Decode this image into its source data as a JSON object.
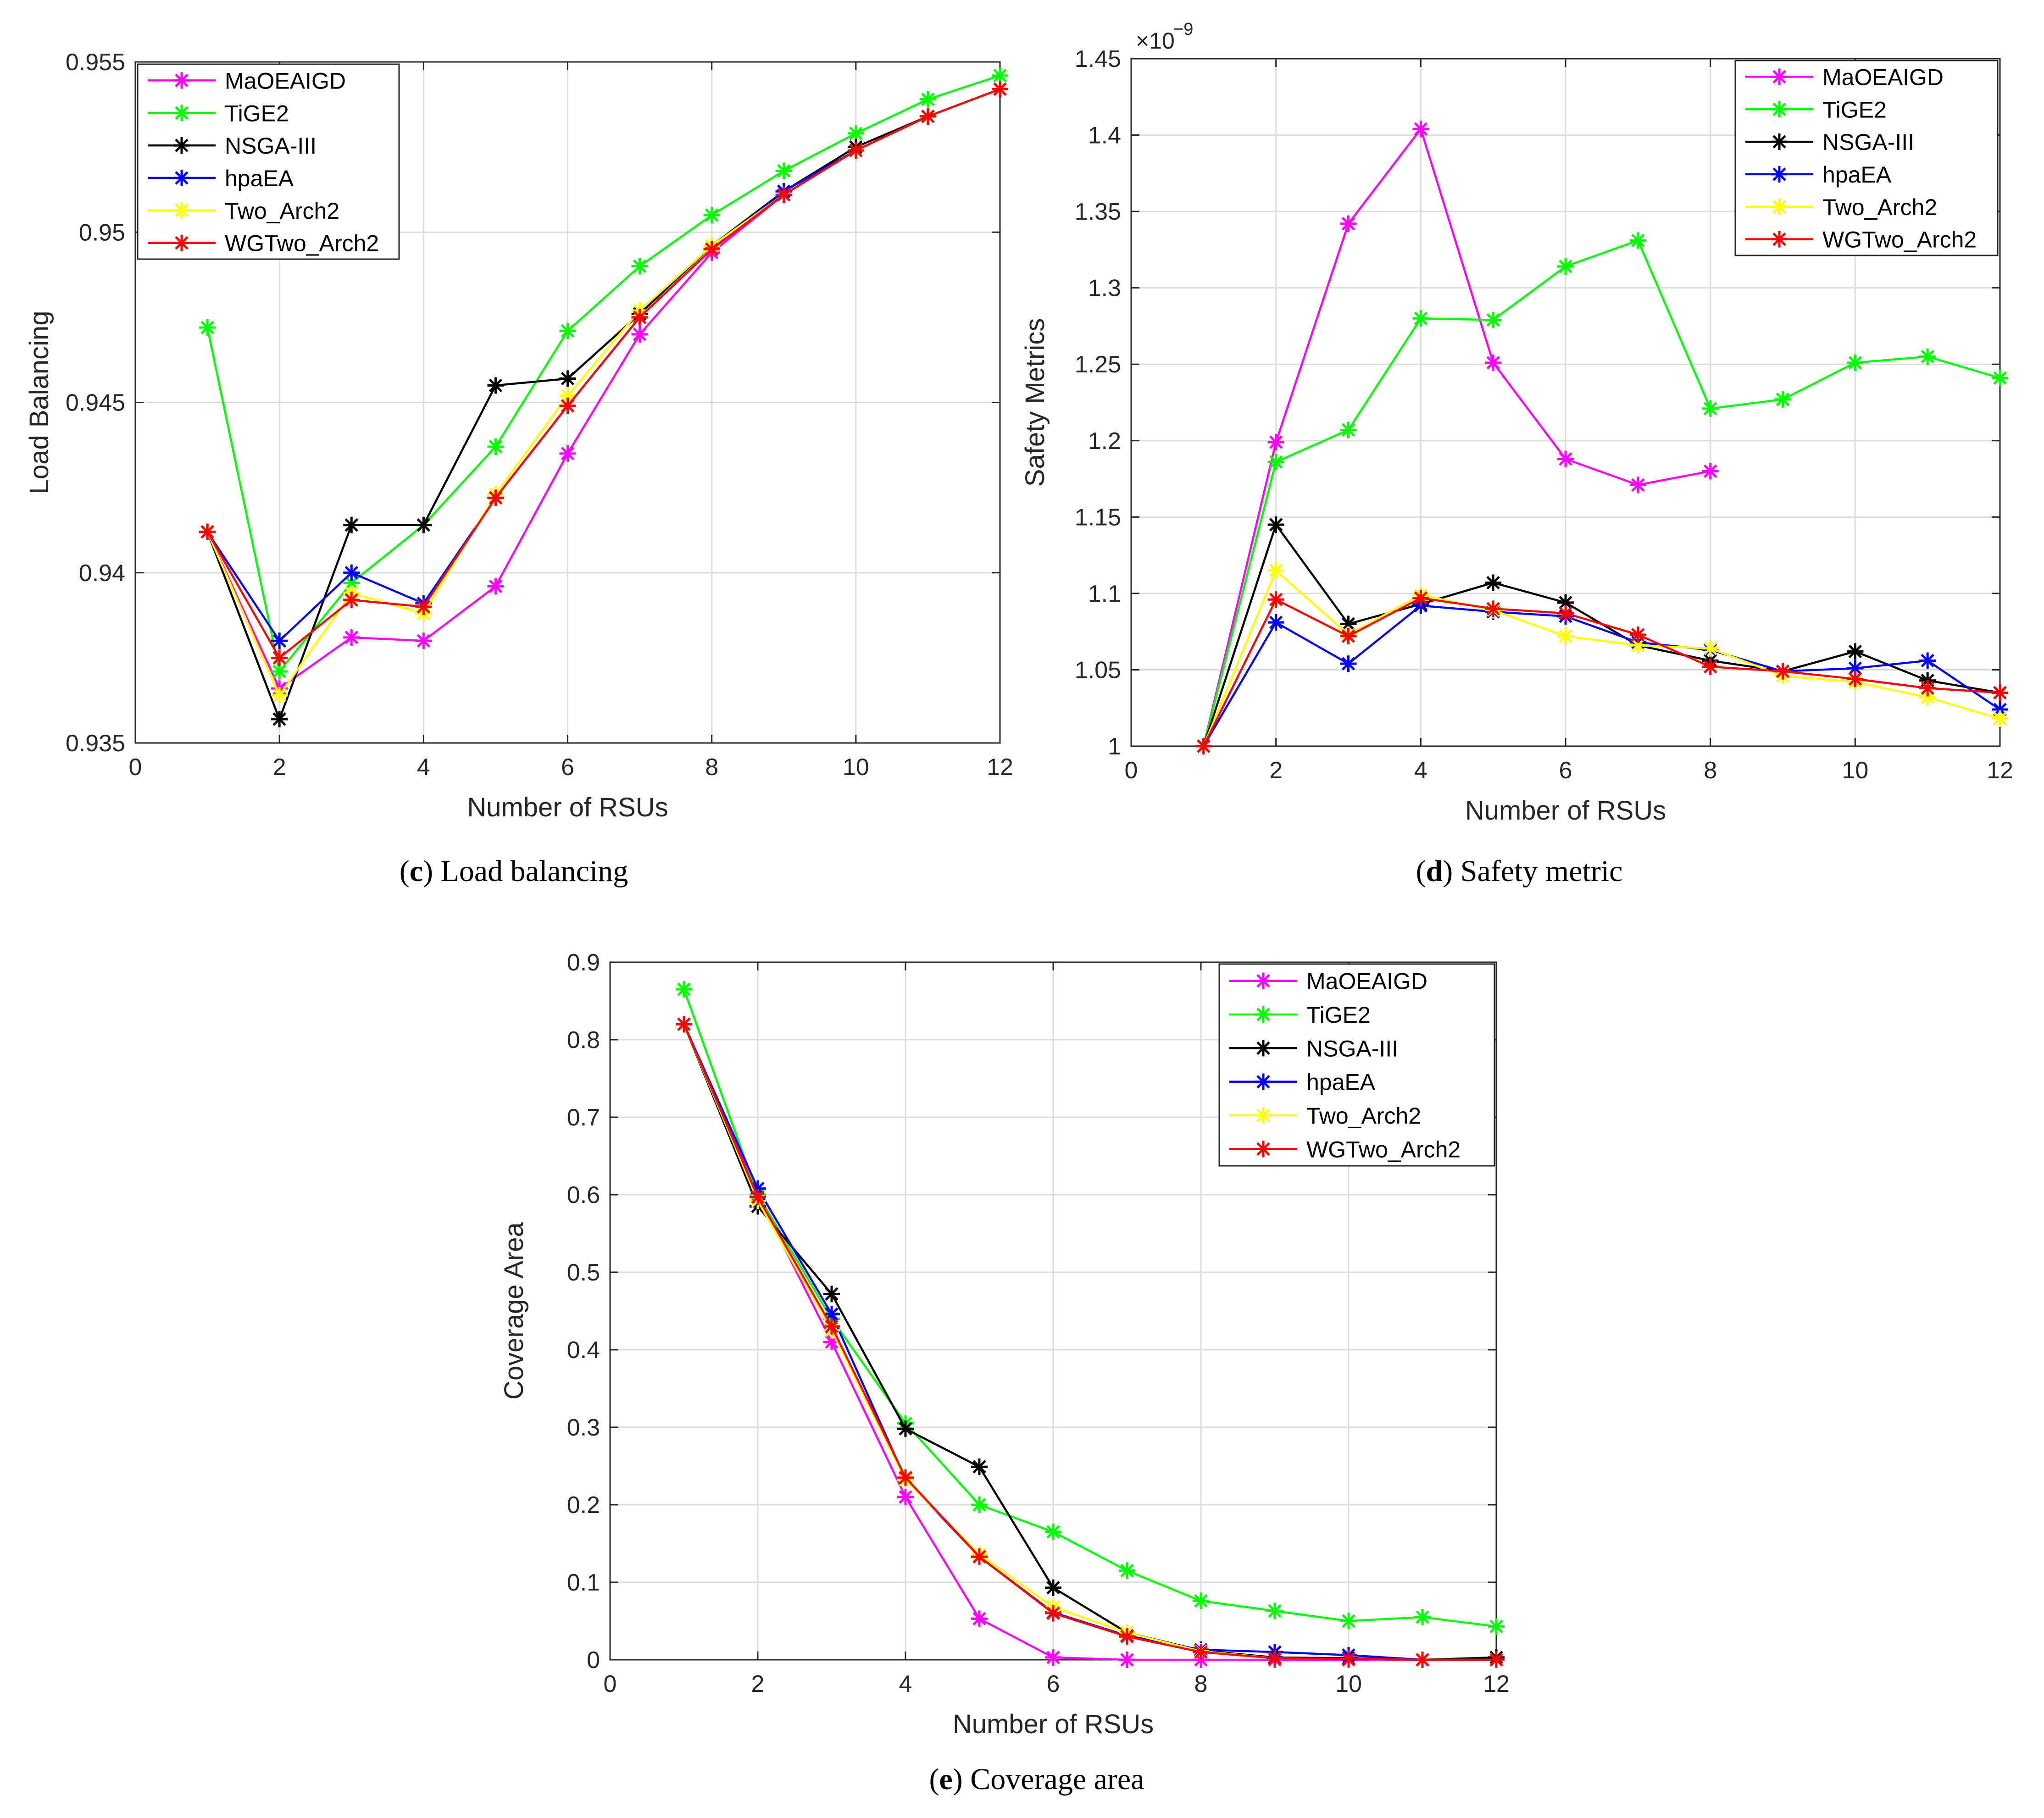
{
  "colors": {
    "MaOEAIGD": "#ff00ff",
    "TiGE2": "#00ff00",
    "NSGA-III": "#000000",
    "hpaEA": "#0000ff",
    "Two_Arch2": "#ffff00",
    "WGTwo_Arch2": "#ff0000",
    "grid": "#dcdcdc",
    "axes": "#262626"
  },
  "captions": {
    "c": {
      "letter": "c",
      "text": " Load balancing"
    },
    "d": {
      "letter": "d",
      "text": " Safety metric"
    },
    "e": {
      "letter": "e",
      "text": " Coverage area"
    }
  },
  "chart_data": [
    {
      "id": "c",
      "type": "line",
      "marker": "asterisk",
      "xlabel": "Number of RSUs",
      "ylabel": "Load Balancing",
      "xlim": [
        0,
        12
      ],
      "ylim": [
        0.935,
        0.955
      ],
      "xticks": [
        0,
        2,
        4,
        6,
        8,
        10,
        12
      ],
      "yticks": [
        0.935,
        0.94,
        0.945,
        0.95,
        0.955
      ],
      "ytick_labels": [
        "0.935",
        "0.94",
        "0.945",
        "0.95",
        "0.955"
      ],
      "exponent_label": "",
      "grid": true,
      "legend_position": "top-left",
      "x": [
        1,
        2,
        3,
        4,
        5,
        6,
        7,
        8,
        9,
        10,
        11,
        12
      ],
      "series": [
        {
          "name": "MaOEAIGD",
          "values": [
            0.9412,
            0.9366,
            0.9381,
            0.938,
            0.9396,
            0.9435,
            0.947,
            0.9494,
            0.9511,
            0.9524,
            0.9534,
            0.9542
          ]
        },
        {
          "name": "TiGE2",
          "values": [
            0.9472,
            0.9371,
            0.9397,
            0.9414,
            0.9437,
            0.9471,
            0.949,
            0.9505,
            0.9518,
            0.9529,
            0.9539,
            0.9546
          ]
        },
        {
          "name": "NSGA-III",
          "values": [
            0.9412,
            0.9357,
            0.9414,
            0.9414,
            0.9455,
            0.9457,
            0.9476,
            0.9496,
            0.9512,
            0.9525,
            0.9534,
            0.9542
          ]
        },
        {
          "name": "hpaEA",
          "values": [
            0.9412,
            0.938,
            0.94,
            0.9391,
            0.9422,
            0.9449,
            0.9475,
            0.9495,
            0.9512,
            0.9524,
            0.9534,
            0.9542
          ]
        },
        {
          "name": "Two_Arch2",
          "values": [
            0.9412,
            0.9364,
            0.9394,
            0.9388,
            0.9423,
            0.9452,
            0.9477,
            0.9496,
            0.9511,
            0.9524,
            0.9534,
            0.9542
          ]
        },
        {
          "name": "WGTwo_Arch2",
          "values": [
            0.9412,
            0.9375,
            0.9392,
            0.939,
            0.9422,
            0.9449,
            0.9475,
            0.9495,
            0.9511,
            0.9524,
            0.9534,
            0.9542
          ]
        }
      ]
    },
    {
      "id": "d",
      "type": "line",
      "marker": "asterisk",
      "xlabel": "Number of RSUs",
      "ylabel": "Safety Metrics",
      "xlim": [
        0,
        12
      ],
      "ylim": [
        1.0,
        1.45
      ],
      "xticks": [
        0,
        2,
        4,
        6,
        8,
        10,
        12
      ],
      "yticks": [
        1.0,
        1.05,
        1.1,
        1.15,
        1.2,
        1.25,
        1.3,
        1.35,
        1.4,
        1.45
      ],
      "ytick_labels": [
        "1",
        "1.05",
        "1.1",
        "1.15",
        "1.2",
        "1.25",
        "1.3",
        "1.35",
        "1.4",
        "1.45"
      ],
      "exponent_label": "×10",
      "exponent_power": "−9",
      "grid": true,
      "legend_position": "top-right",
      "x": [
        1,
        2,
        3,
        4,
        5,
        6,
        7,
        8,
        9,
        10,
        11,
        12
      ],
      "series": [
        {
          "name": "MaOEAIGD",
          "values": [
            1.0,
            1.199,
            1.342,
            1.404,
            1.251,
            1.188,
            1.171,
            1.18,
            null,
            null,
            null,
            null
          ]
        },
        {
          "name": "TiGE2",
          "values": [
            1.0,
            1.186,
            1.207,
            1.28,
            1.279,
            1.314,
            1.331,
            1.221,
            1.227,
            1.251,
            1.255,
            1.241
          ]
        },
        {
          "name": "NSGA-III",
          "values": [
            1.0,
            1.145,
            1.08,
            1.093,
            1.107,
            1.094,
            1.066,
            1.056,
            1.049,
            1.062,
            1.043,
            1.035
          ]
        },
        {
          "name": "hpaEA",
          "values": [
            1.0,
            1.081,
            1.054,
            1.092,
            1.088,
            1.085,
            1.068,
            1.063,
            1.049,
            1.051,
            1.056,
            1.024
          ]
        },
        {
          "name": "Two_Arch2",
          "values": [
            1.0,
            1.115,
            1.073,
            1.099,
            1.089,
            1.072,
            1.066,
            1.064,
            1.046,
            1.042,
            1.032,
            1.018
          ]
        },
        {
          "name": "WGTwo_Arch2",
          "values": [
            1.0,
            1.096,
            1.072,
            1.097,
            1.09,
            1.087,
            1.073,
            1.052,
            1.049,
            1.044,
            1.038,
            1.035
          ]
        }
      ]
    },
    {
      "id": "e",
      "type": "line",
      "marker": "asterisk",
      "xlabel": "Number of RSUs",
      "ylabel": "Coverage Area",
      "xlim": [
        0,
        12
      ],
      "ylim": [
        0,
        0.9
      ],
      "xticks": [
        0,
        2,
        4,
        6,
        8,
        10,
        12
      ],
      "yticks": [
        0,
        0.1,
        0.2,
        0.3,
        0.4,
        0.5,
        0.6,
        0.7,
        0.8,
        0.9
      ],
      "ytick_labels": [
        "0",
        "0.1",
        "0.2",
        "0.3",
        "0.4",
        "0.5",
        "0.6",
        "0.7",
        "0.8",
        "0.9"
      ],
      "exponent_label": "",
      "grid": true,
      "legend_position": "top-right",
      "x": [
        1,
        2,
        3,
        4,
        5,
        6,
        7,
        8,
        9,
        10,
        11,
        12
      ],
      "series": [
        {
          "name": "MaOEAIGD",
          "values": [
            0.82,
            0.6,
            0.41,
            0.21,
            0.053,
            0.003,
            0.0,
            0.0,
            0.0,
            0.0,
            0.0,
            0.0
          ]
        },
        {
          "name": "TiGE2",
          "values": [
            0.865,
            0.6,
            0.44,
            0.305,
            0.2,
            0.165,
            0.115,
            0.076,
            0.063,
            0.05,
            0.055,
            0.043
          ]
        },
        {
          "name": "NSGA-III",
          "values": [
            0.82,
            0.585,
            0.472,
            0.298,
            0.249,
            0.093,
            0.035,
            0.012,
            0.003,
            0.002,
            0.0,
            0.003
          ]
        },
        {
          "name": "hpaEA",
          "values": [
            0.82,
            0.608,
            0.446,
            0.233,
            0.133,
            0.061,
            0.031,
            0.013,
            0.01,
            0.006,
            0.0,
            0.0
          ]
        },
        {
          "name": "Two_Arch2",
          "values": [
            0.82,
            0.592,
            0.425,
            0.232,
            0.136,
            0.068,
            0.035,
            0.011,
            0.002,
            0.001,
            0.0,
            0.0
          ]
        },
        {
          "name": "WGTwo_Arch2",
          "values": [
            0.82,
            0.597,
            0.43,
            0.235,
            0.133,
            0.06,
            0.03,
            0.01,
            0.002,
            0.001,
            0.0,
            0.0
          ]
        }
      ]
    }
  ]
}
